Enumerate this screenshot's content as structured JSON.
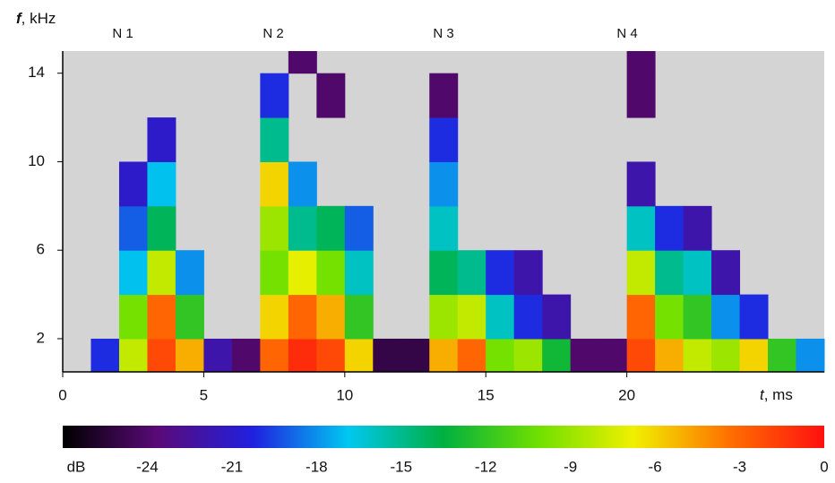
{
  "chart_data": {
    "type": "heatmap",
    "ylabel": [
      "f",
      ", kHz"
    ],
    "xlabel": [
      "t",
      ", ms"
    ],
    "annotations": [
      "N 1",
      "N 2",
      "N 3",
      "N 4"
    ],
    "background": "#d4d4d4",
    "xlim": [
      0,
      27
    ],
    "xticks": [
      0,
      5,
      10,
      15,
      20
    ],
    "ylim": [
      0.5,
      15
    ],
    "yticks": [
      2,
      6,
      10,
      14
    ],
    "xbins": [
      0,
      1,
      2,
      3,
      4,
      5,
      6,
      7,
      8,
      9,
      10,
      11,
      12,
      13,
      14,
      15,
      16,
      17,
      18,
      19,
      20,
      21,
      22,
      23,
      24,
      25,
      26,
      27
    ],
    "ybins": [
      0.5,
      2,
      4,
      6,
      8,
      10,
      12,
      14,
      15
    ],
    "z": [
      [
        null,
        -20,
        -8,
        -2,
        -5,
        -22,
        -24,
        -3,
        -1,
        -2,
        -6,
        -25,
        -25,
        -5,
        -3,
        -10,
        -9,
        -13,
        -24,
        -24,
        -2,
        -5,
        -8,
        -9,
        -6,
        -12,
        -18
      ],
      [
        null,
        null,
        -10,
        -3,
        -12,
        null,
        null,
        -6,
        -3,
        -5,
        -12,
        null,
        null,
        -9,
        -8,
        -16,
        -20,
        -22,
        null,
        null,
        -3,
        -10,
        -12,
        -18,
        -20,
        null,
        null
      ],
      [
        null,
        null,
        -17,
        -8,
        -18,
        null,
        null,
        -10,
        -7,
        -10,
        -16,
        null,
        null,
        -14,
        -15,
        -20,
        -22,
        null,
        null,
        null,
        -8,
        -15,
        -16,
        -22,
        null,
        null,
        null
      ],
      [
        null,
        null,
        -19,
        -14,
        null,
        null,
        null,
        -9,
        -15,
        -14,
        -19,
        null,
        null,
        -16,
        null,
        null,
        null,
        null,
        null,
        null,
        -16,
        -20,
        -22,
        null,
        null,
        null,
        null
      ],
      [
        null,
        null,
        -21,
        -17,
        null,
        null,
        null,
        -6,
        -18,
        null,
        null,
        null,
        null,
        -18,
        null,
        null,
        null,
        null,
        null,
        null,
        -22,
        null,
        null,
        null,
        null,
        null,
        null
      ],
      [
        null,
        null,
        null,
        -21,
        null,
        null,
        null,
        -15,
        null,
        null,
        null,
        null,
        null,
        -20,
        null,
        null,
        null,
        null,
        null,
        null,
        null,
        null,
        null,
        null,
        null,
        null,
        null
      ],
      [
        null,
        null,
        null,
        null,
        null,
        null,
        null,
        -20,
        null,
        -24,
        null,
        null,
        null,
        -24,
        null,
        null,
        null,
        null,
        null,
        null,
        -24,
        null,
        null,
        null,
        null,
        null,
        null
      ],
      [
        null,
        null,
        null,
        null,
        null,
        null,
        null,
        null,
        -24,
        null,
        null,
        null,
        null,
        null,
        null,
        null,
        null,
        null,
        null,
        null,
        -24,
        null,
        null,
        null,
        null,
        null,
        null
      ]
    ],
    "colorbar_label": "dB",
    "clim": [
      -27,
      0
    ],
    "cticks": [
      -24,
      -21,
      -18,
      -15,
      -12,
      -9,
      -6,
      -3,
      0
    ],
    "colormap": [
      "#000000",
      "#5a0a78",
      "#2020e0",
      "#00c8f0",
      "#00b040",
      "#70e000",
      "#f0f000",
      "#ff7000",
      "#ff1010"
    ]
  }
}
